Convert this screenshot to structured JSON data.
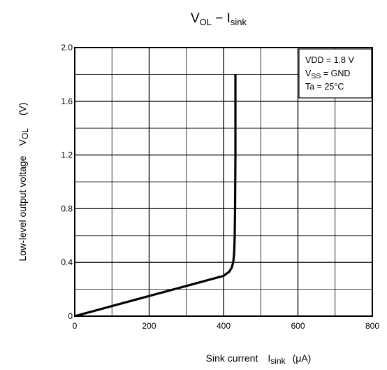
{
  "chart_data": {
    "type": "line",
    "title": {
      "main": "V",
      "main_sub": "OL",
      "dash": " − ",
      "second": "I",
      "second_sub": "sink"
    },
    "xlabel": {
      "text": "Sink current",
      "symbol": "I",
      "symbol_sub": "sink",
      "unit": "(μA)"
    },
    "ylabel": {
      "text": "Low-level output voltage",
      "symbol": "V",
      "symbol_sub": "OL",
      "unit": "(V)"
    },
    "xlim": [
      0,
      800
    ],
    "ylim": [
      0,
      2.0
    ],
    "x_ticks": [
      0,
      200,
      400,
      600,
      800
    ],
    "x_tick_labels": [
      "0",
      "200",
      "400",
      "600",
      "800"
    ],
    "y_ticks": [
      0,
      0.4,
      0.8,
      1.2,
      1.6,
      2.0
    ],
    "y_tick_labels": [
      "0",
      "0.4",
      "0.8",
      "1.2",
      "1.6",
      "2.0"
    ],
    "x_minor_step": 100,
    "y_minor_step": 0.2,
    "grid": true,
    "legend": "none",
    "conditions": [
      {
        "prefix": "VDD = 1.8 V",
        "sub": "",
        "suffix": ""
      },
      {
        "prefix": "V",
        "sub": "SS",
        "suffix": " = GND"
      },
      {
        "prefix": "Ta = 25°C",
        "sub": "",
        "suffix": ""
      }
    ],
    "series": [
      {
        "color": "#000000",
        "x": [
          0,
          100,
          200,
          300,
          400,
          415,
          422,
          426,
          428,
          429,
          430,
          431,
          432,
          432,
          432
        ],
        "y": [
          0,
          0.075,
          0.15,
          0.225,
          0.3,
          0.33,
          0.36,
          0.4,
          0.45,
          0.5,
          0.6,
          0.8,
          1.2,
          1.6,
          1.8
        ]
      }
    ]
  }
}
